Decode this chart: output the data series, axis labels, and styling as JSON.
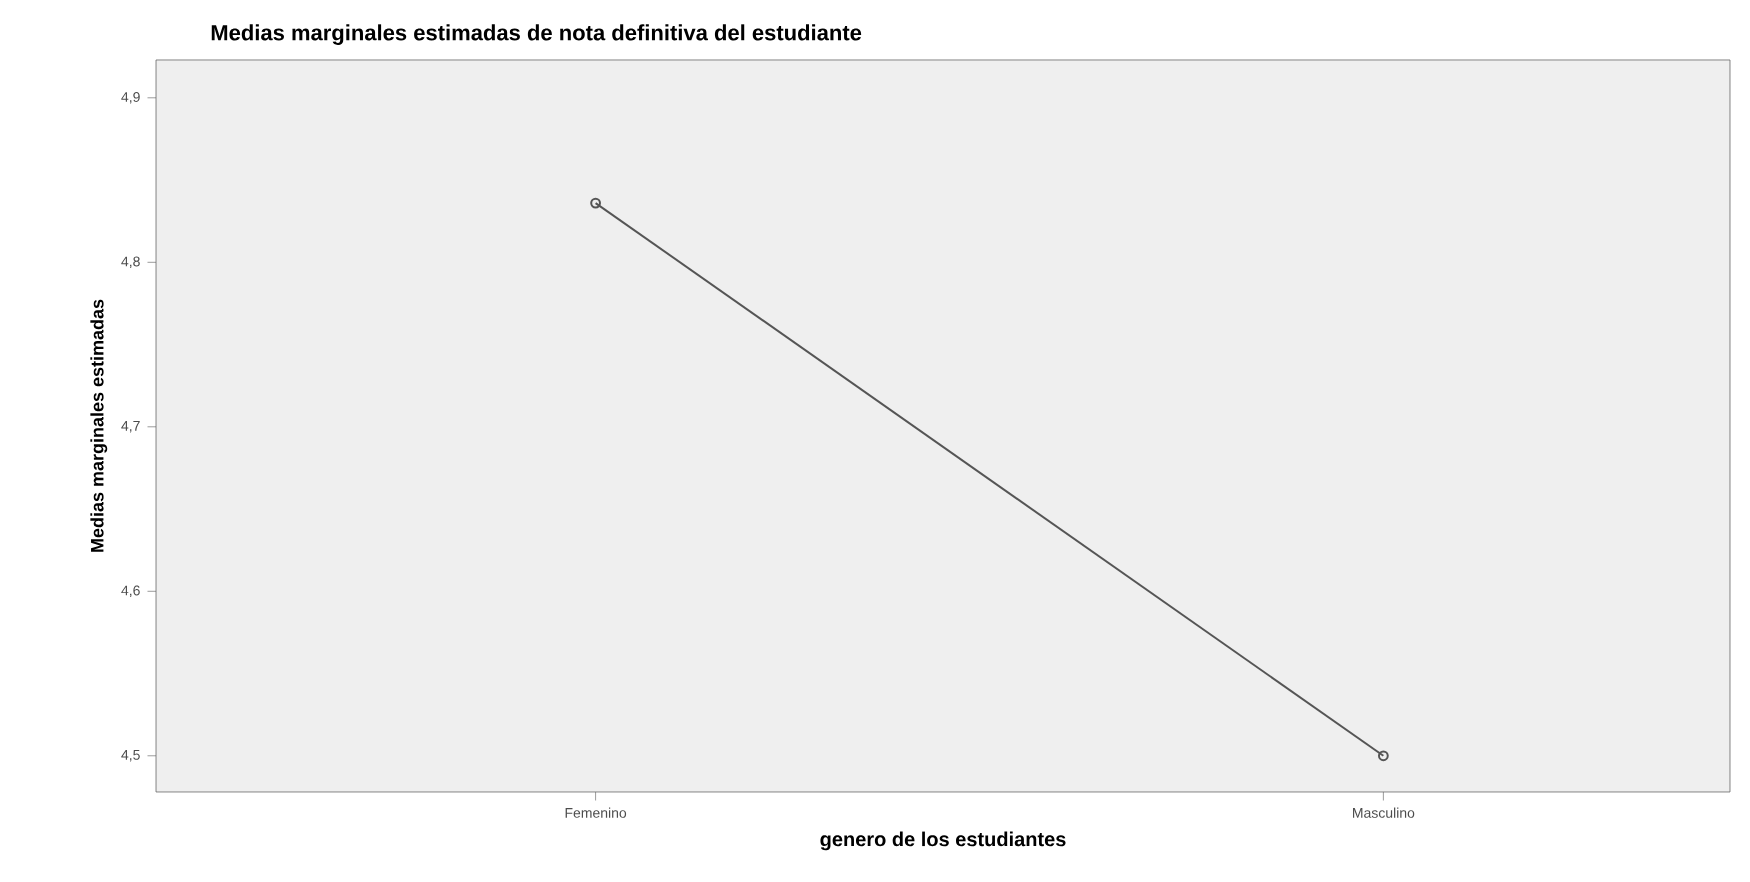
{
  "chart_data": {
    "type": "line",
    "title": "Medias marginales estimadas de nota definitiva del estudiante",
    "xlabel": "genero de los estudiantes",
    "ylabel": "Medias marginales estimadas",
    "categories": [
      "Femenino",
      "Masculino"
    ],
    "series": [
      {
        "color": "#555555",
        "values": [
          4.836,
          4.5
        ]
      }
    ],
    "ylim": [
      4.478,
      4.923
    ],
    "yticks": [
      {
        "value": 4.5,
        "label": "4,5"
      },
      {
        "value": 4.6,
        "label": "4,6"
      },
      {
        "value": 4.7,
        "label": "4,7"
      },
      {
        "value": 4.8,
        "label": "4,8"
      },
      {
        "value": 4.9,
        "label": "4,9"
      }
    ],
    "marker": "circle",
    "line_style": "solid",
    "grid": false
  }
}
